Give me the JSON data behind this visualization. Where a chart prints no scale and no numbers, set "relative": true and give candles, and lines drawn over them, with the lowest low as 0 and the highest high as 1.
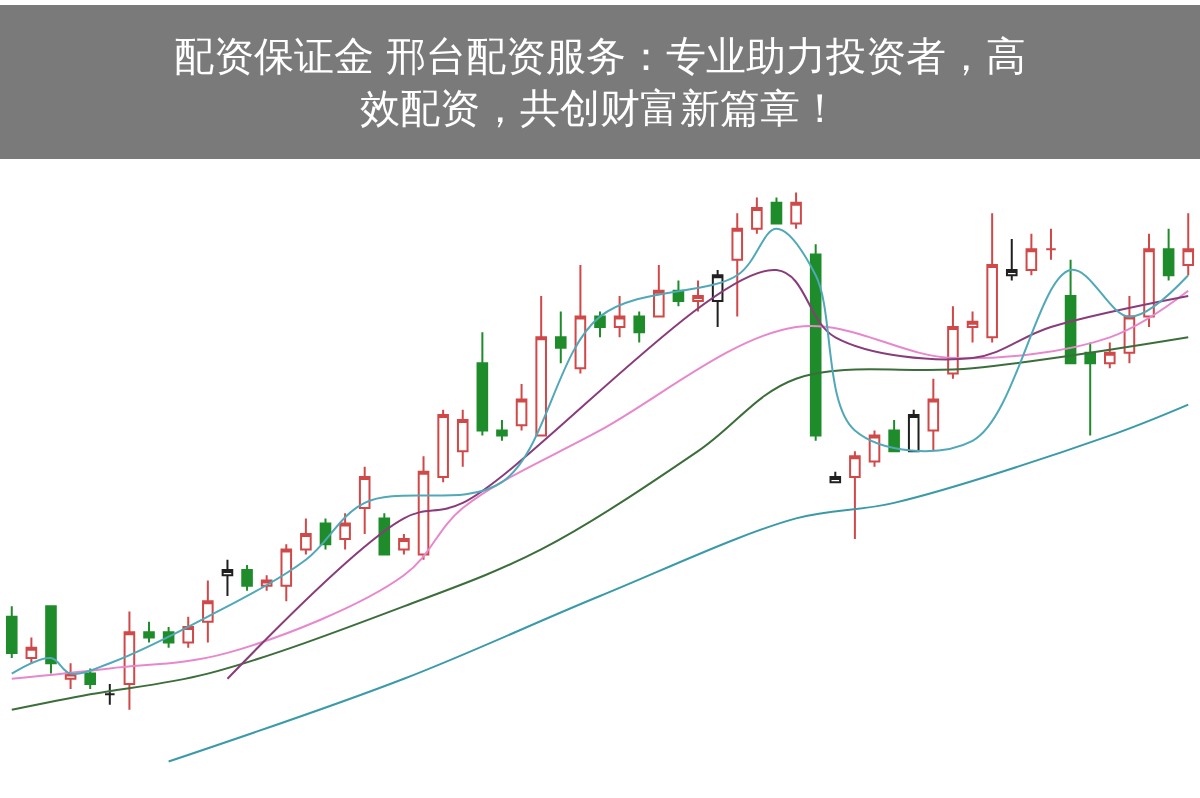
{
  "chart_data": {
    "type": "candlestick",
    "relative": true,
    "title": "配资保证金 邢台配资服务：专业助力投资者，高效配资，共创财富新篇章！",
    "categories": [
      null,
      null,
      null,
      null,
      null,
      null,
      null,
      null,
      null,
      null,
      null,
      null,
      null,
      null,
      null,
      null,
      null,
      null,
      null,
      null,
      null,
      null,
      null,
      null,
      null,
      null,
      null,
      null,
      null,
      null,
      null,
      null,
      null,
      null,
      null,
      null,
      null,
      null,
      null,
      null,
      null,
      null,
      null,
      null,
      null,
      null,
      null,
      null,
      null,
      null,
      null,
      null,
      null,
      null,
      null,
      null,
      null,
      null,
      null,
      null,
      null
    ],
    "ohlc": [
      [
        0.18,
        0.2,
        0.1,
        0.11
      ],
      [
        0.1,
        0.14,
        0.09,
        0.12
      ],
      [
        0.2,
        0.2,
        0.07,
        0.09
      ],
      [
        0.06,
        0.09,
        0.04,
        0.07
      ],
      [
        0.07,
        0.08,
        0.04,
        0.05
      ],
      [
        0.03,
        0.05,
        0.01,
        0.03
      ],
      [
        0.05,
        0.19,
        0,
        0.15
      ],
      [
        0.15,
        0.17,
        0.13,
        0.14
      ],
      [
        0.15,
        0.16,
        0.12,
        0.13
      ],
      [
        0.13,
        0.18,
        0.12,
        0.16
      ],
      [
        0.17,
        0.25,
        0.13,
        0.21
      ],
      [
        0.26,
        0.29,
        0.22,
        0.27
      ],
      [
        0.27,
        0.28,
        0.23,
        0.24
      ],
      [
        0.24,
        0.26,
        0.23,
        0.25
      ],
      [
        0.24,
        0.32,
        0.21,
        0.31
      ],
      [
        0.31,
        0.37,
        0.3,
        0.34
      ],
      [
        0.36,
        0.37,
        0.31,
        0.32
      ],
      [
        0.33,
        0.38,
        0.31,
        0.36
      ],
      [
        0.39,
        0.47,
        0.34,
        0.45
      ],
      [
        0.37,
        0.38,
        0.3,
        0.3
      ],
      [
        0.31,
        0.34,
        0.3,
        0.33
      ],
      [
        0.3,
        0.49,
        0.29,
        0.46
      ],
      [
        0.45,
        0.58,
        0.44,
        0.57
      ],
      [
        0.5,
        0.58,
        0.47,
        0.56
      ],
      [
        0.67,
        0.73,
        0.53,
        0.54
      ],
      [
        0.54,
        0.56,
        0.52,
        0.53
      ],
      [
        0.55,
        0.63,
        0.54,
        0.6
      ],
      [
        0.53,
        0.8,
        0.53,
        0.72
      ],
      [
        0.72,
        0.77,
        0.67,
        0.7
      ],
      [
        0.66,
        0.86,
        0.65,
        0.76
      ],
      [
        0.76,
        0.77,
        0.72,
        0.74
      ],
      [
        0.74,
        0.8,
        0.72,
        0.76
      ],
      [
        0.76,
        0.77,
        0.71,
        0.73
      ],
      [
        0.76,
        0.86,
        0.76,
        0.81
      ],
      [
        0.81,
        0.83,
        0.78,
        0.79
      ],
      [
        0.79,
        0.83,
        0.77,
        0.8
      ],
      [
        0.79,
        0.85,
        0.74,
        0.84
      ],
      [
        0.87,
        0.96,
        0.76,
        0.93
      ],
      [
        0.93,
        0.99,
        0.92,
        0.97
      ],
      [
        0.98,
        0.99,
        0.94,
        0.94
      ],
      [
        0.94,
        1.0,
        0.93,
        0.98
      ],
      [
        0.88,
        0.9,
        0.52,
        0.53
      ],
      [
        0.44,
        0.46,
        0.44,
        0.45
      ],
      [
        0.45,
        0.5,
        0.33,
        0.49
      ],
      [
        0.48,
        0.54,
        0.47,
        0.53
      ],
      [
        0.54,
        0.56,
        0.5,
        0.5
      ],
      [
        0.5,
        0.58,
        0.5,
        0.57
      ],
      [
        0.54,
        0.64,
        0.5,
        0.6
      ],
      [
        0.65,
        0.78,
        0.64,
        0.74
      ],
      [
        0.74,
        0.77,
        0.71,
        0.75
      ],
      [
        0.72,
        0.96,
        0.71,
        0.86
      ],
      [
        0.84,
        0.91,
        0.83,
        0.85
      ],
      [
        0.85,
        0.92,
        0.84,
        0.89
      ],
      [
        0.89,
        0.93,
        0.87,
        0.89
      ],
      [
        0.8,
        0.87,
        0.67,
        0.67
      ],
      [
        0.69,
        0.71,
        0.53,
        0.67
      ],
      [
        0.67,
        0.71,
        0.66,
        0.69
      ],
      [
        0.69,
        0.8,
        0.67,
        0.76
      ],
      [
        0.76,
        0.92,
        0.74,
        0.89
      ],
      [
        0.89,
        0.93,
        0.83,
        0.84
      ],
      [
        0.86,
        0.96,
        0.84,
        0.89
      ]
    ],
    "colors": [
      "#1e8c2a",
      "#d04848",
      "#1e8c2a",
      "#d04848",
      "#1e8c2a",
      "#202020",
      "#d04848",
      "#1e8c2a",
      "#1e8c2a",
      "#d04848",
      "#d04848",
      "#202020",
      "#1e8c2a",
      "#d04848",
      "#d04848",
      "#d04848",
      "#1e8c2a",
      "#d04848",
      "#d04848",
      "#1e8c2a",
      "#d04848",
      "#d04848",
      "#d04848",
      "#d04848",
      "#1e8c2a",
      "#1e8c2a",
      "#d04848",
      "#d04848",
      "#1e8c2a",
      "#d04848",
      "#1e8c2a",
      "#d04848",
      "#1e8c2a",
      "#d04848",
      "#1e8c2a",
      "#d04848",
      "#202020",
      "#d04848",
      "#d04848",
      "#1e8c2a",
      "#d04848",
      "#1e8c2a",
      "#202020",
      "#d04848",
      "#d04848",
      "#1e8c2a",
      "#202020",
      "#d04848",
      "#d04848",
      "#d04848",
      "#d04848",
      "#202020",
      "#d04848",
      "#d04848",
      "#1e8c2a",
      "#1e8c2a",
      "#d04848",
      "#d04848",
      "#d04848",
      "#1e8c2a",
      "#d04848"
    ],
    "series": [
      {
        "type": "line",
        "color": "#3a9aa8",
        "values": [
          null,
          null,
          null,
          null,
          null,
          null,
          null,
          null,
          -0.1,
          null,
          null,
          null,
          null,
          null,
          null,
          null,
          null,
          null,
          null,
          null,
          0.06,
          null,
          null,
          null,
          null,
          null,
          null,
          null,
          null,
          null,
          0.22,
          null,
          null,
          null,
          null,
          null,
          null,
          null,
          null,
          null,
          0.37,
          null,
          null,
          null,
          null,
          0.4,
          null,
          null,
          null,
          null,
          null,
          null,
          null,
          null,
          null,
          null,
          0.53,
          null,
          null,
          null,
          0.59
        ]
      },
      {
        "type": "line",
        "color": "#3c6e3c",
        "values": [
          0,
          null,
          null,
          null,
          0.03,
          null,
          null,
          null,
          null,
          null,
          0.07,
          null,
          null,
          null,
          null,
          null,
          null,
          null,
          null,
          null,
          0.2,
          null,
          null,
          null,
          null,
          null,
          null,
          0.31,
          null,
          null,
          null,
          null,
          null,
          null,
          null,
          0.5,
          null,
          null,
          null,
          null,
          0.64,
          null,
          null,
          null,
          null,
          null,
          null,
          null,
          null,
          0.66,
          null,
          null,
          null,
          null,
          null,
          null,
          null,
          null,
          null,
          null,
          0.72
        ]
      },
      {
        "type": "line",
        "color": "#e888cc",
        "values": [
          0.06,
          null,
          null,
          null,
          null,
          0.08,
          null,
          null,
          null,
          null,
          null,
          0.11,
          null,
          null,
          null,
          null,
          null,
          null,
          null,
          null,
          0.26,
          null,
          null,
          0.39,
          null,
          null,
          null,
          null,
          null,
          null,
          0.54,
          null,
          null,
          null,
          null,
          null,
          null,
          null,
          null,
          null,
          0.74,
          null,
          null,
          null,
          null,
          null,
          null,
          null,
          0.68,
          null,
          null,
          null,
          null,
          null,
          null,
          null,
          0.72,
          null,
          null,
          null,
          0.81
        ]
      },
      {
        "type": "line",
        "color": "#8a3c7a",
        "values": [
          null,
          null,
          null,
          null,
          null,
          null,
          null,
          null,
          null,
          null,
          null,
          0.06,
          null,
          null,
          null,
          null,
          null,
          null,
          null,
          null,
          0.37,
          null,
          null,
          0.4,
          null,
          null,
          null,
          null,
          null,
          null,
          null,
          null,
          null,
          null,
          null,
          null,
          null,
          null,
          null,
          0.85,
          null,
          null,
          0.72,
          null,
          null,
          null,
          null,
          null,
          null,
          0.68,
          null,
          null,
          null,
          0.74,
          null,
          null,
          null,
          null,
          null,
          null,
          0.8
        ]
      },
      {
        "type": "line",
        "color": "#50a8b8",
        "values": [
          0.07,
          null,
          0.1,
          0.07,
          null,
          0.09,
          null,
          null,
          null,
          null,
          0.18,
          null,
          null,
          null,
          null,
          0.29,
          null,
          null,
          0.4,
          null,
          null,
          null,
          null,
          null,
          null,
          0.44,
          null,
          null,
          null,
          null,
          0.76,
          null,
          null,
          null,
          null,
          null,
          null,
          0.84,
          null,
          0.93,
          null,
          0.84,
          null,
          0.54,
          null,
          null,
          null,
          null,
          null,
          0.52,
          null,
          null,
          null,
          null,
          0.85,
          null,
          null,
          0.76,
          null,
          null,
          0.84
        ]
      }
    ]
  }
}
